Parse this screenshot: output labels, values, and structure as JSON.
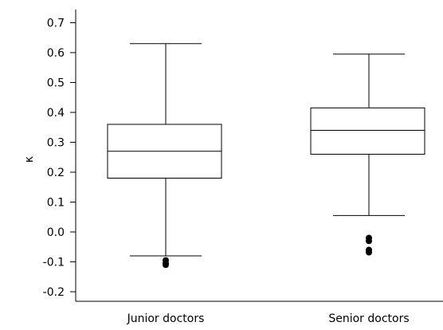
{
  "chart_data": {
    "type": "box",
    "title": "",
    "xlabel": "",
    "ylabel": "κ",
    "ylim": [
      -0.25,
      0.75
    ],
    "yticks": [
      0.7,
      0.6,
      0.5,
      0.4,
      0.3,
      0.2,
      0.1,
      0.0,
      -0.1,
      -0.2
    ],
    "ytick_labels": [
      "0.7",
      "0.6",
      "0.5",
      "0.4",
      "0.3",
      "0.2",
      "0.1",
      "0.0",
      "-0.1",
      "-0.2"
    ],
    "categories": [
      "Junior doctors",
      "Senior doctors"
    ],
    "boxes": [
      {
        "category": "Junior doctors",
        "whisker_low": -0.08,
        "q1": 0.18,
        "median": 0.27,
        "q3": 0.36,
        "whisker_high": 0.63,
        "outliers": [
          -0.095,
          -0.105,
          -0.11
        ]
      },
      {
        "category": "Senior doctors",
        "whisker_low": 0.055,
        "q1": 0.26,
        "median": 0.34,
        "q3": 0.415,
        "whisker_high": 0.595,
        "outliers": [
          -0.02,
          -0.03,
          -0.06,
          -0.068
        ]
      }
    ],
    "grid": false
  }
}
